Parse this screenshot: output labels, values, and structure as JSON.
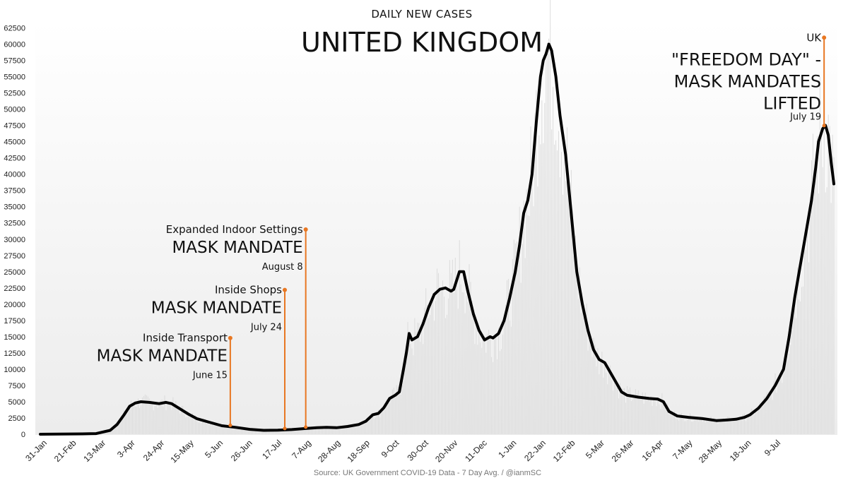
{
  "chart_data": {
    "type": "line",
    "title": "UNITED KINGDOM",
    "subtitle": "DAILY NEW CASES",
    "source": "Source: UK Government COVID-19 Data - 7 Day Avg. / @ianmSC",
    "ylim": [
      0,
      62500
    ],
    "yticks": [
      0,
      2500,
      5000,
      7500,
      10000,
      12500,
      15000,
      17500,
      20000,
      22500,
      25000,
      27500,
      30000,
      32500,
      35000,
      37500,
      40000,
      42500,
      45000,
      47500,
      50000,
      52500,
      55000,
      57500,
      60000,
      62500
    ],
    "x_tick_labels": [
      "31-Jan",
      "21-Feb",
      "13-Mar",
      "3-Apr",
      "24-Apr",
      "15-May",
      "5-Jun",
      "26-Jun",
      "17-Jul",
      "7-Aug",
      "28-Aug",
      "18-Sep",
      "9-Oct",
      "30-Oct",
      "20-Nov",
      "11-Dec",
      "1-Jan",
      "22-Jan",
      "12-Feb",
      "5-Mar",
      "26-Mar",
      "16-Apr",
      "7-May",
      "28-May",
      "18-Jun",
      "9-Jul"
    ],
    "xlim_days": [
      0,
      540
    ],
    "grid": false,
    "series": [
      {
        "values_day_y": [
          [
            0,
            0
          ],
          [
            30,
            50
          ],
          [
            40,
            100
          ],
          [
            50,
            600
          ],
          [
            55,
            1500
          ],
          [
            60,
            3000
          ],
          [
            64,
            4300
          ],
          [
            68,
            4800
          ],
          [
            72,
            5000
          ],
          [
            78,
            4900
          ],
          [
            85,
            4700
          ],
          [
            90,
            4900
          ],
          [
            94,
            4700
          ],
          [
            100,
            3900
          ],
          [
            106,
            3100
          ],
          [
            112,
            2400
          ],
          [
            120,
            1900
          ],
          [
            130,
            1300
          ],
          [
            140,
            1050
          ],
          [
            150,
            750
          ],
          [
            160,
            600
          ],
          [
            170,
            620
          ],
          [
            180,
            720
          ],
          [
            190,
            880
          ],
          [
            198,
            1000
          ],
          [
            205,
            1050
          ],
          [
            212,
            1000
          ],
          [
            220,
            1200
          ],
          [
            228,
            1500
          ],
          [
            233,
            2000
          ],
          [
            238,
            3000
          ],
          [
            242,
            3200
          ],
          [
            246,
            4100
          ],
          [
            250,
            5500
          ],
          [
            254,
            6000
          ],
          [
            257,
            6500
          ],
          [
            260,
            10000
          ],
          [
            262,
            12500
          ],
          [
            264,
            15500
          ],
          [
            266,
            14500
          ],
          [
            270,
            15000
          ],
          [
            274,
            17000
          ],
          [
            278,
            19500
          ],
          [
            282,
            21500
          ],
          [
            286,
            22300
          ],
          [
            290,
            22500
          ],
          [
            294,
            22000
          ],
          [
            296,
            22300
          ],
          [
            300,
            25000
          ],
          [
            303,
            25000
          ],
          [
            306,
            22000
          ],
          [
            310,
            18500
          ],
          [
            314,
            16000
          ],
          [
            318,
            14500
          ],
          [
            322,
            15000
          ],
          [
            324,
            14800
          ],
          [
            328,
            15500
          ],
          [
            332,
            17500
          ],
          [
            336,
            21000
          ],
          [
            340,
            25000
          ],
          [
            343,
            29000
          ],
          [
            346,
            34000
          ],
          [
            349,
            36000
          ],
          [
            352,
            40000
          ],
          [
            355,
            48000
          ],
          [
            358,
            55000
          ],
          [
            360,
            57500
          ],
          [
            362,
            58500
          ],
          [
            364,
            60000
          ],
          [
            366,
            59000
          ],
          [
            369,
            55000
          ],
          [
            372,
            49000
          ],
          [
            376,
            43000
          ],
          [
            380,
            34000
          ],
          [
            384,
            25000
          ],
          [
            388,
            20000
          ],
          [
            392,
            16000
          ],
          [
            396,
            13000
          ],
          [
            400,
            11500
          ],
          [
            404,
            11000
          ],
          [
            408,
            9500
          ],
          [
            412,
            8000
          ],
          [
            416,
            6500
          ],
          [
            420,
            6000
          ],
          [
            428,
            5700
          ],
          [
            436,
            5500
          ],
          [
            442,
            5400
          ],
          [
            446,
            5000
          ],
          [
            450,
            3500
          ],
          [
            456,
            2800
          ],
          [
            464,
            2600
          ],
          [
            474,
            2400
          ],
          [
            484,
            2100
          ],
          [
            492,
            2200
          ],
          [
            498,
            2300
          ],
          [
            504,
            2600
          ],
          [
            508,
            3000
          ],
          [
            514,
            4000
          ],
          [
            520,
            5500
          ],
          [
            526,
            7500
          ],
          [
            532,
            10000
          ],
          [
            536,
            15000
          ],
          [
            540,
            21000
          ],
          [
            544,
            26000
          ],
          [
            548,
            31000
          ],
          [
            552,
            36000
          ],
          [
            555,
            41000
          ],
          [
            557,
            45000
          ],
          [
            560,
            47000
          ],
          [
            562,
            47500
          ],
          [
            564,
            46000
          ],
          [
            566,
            42000
          ],
          [
            568,
            38500
          ]
        ]
      }
    ],
    "annotations": [
      {
        "sub": "Inside Transport",
        "main": "MASK MANDATE",
        "date": "June 15",
        "day": 136,
        "top": 14800
      },
      {
        "sub": "Inside Shops",
        "main": "MASK MANDATE",
        "date": "July 24",
        "day": 175,
        "top": 22200
      },
      {
        "sub": "Expanded Indoor Settings",
        "main": "MASK MANDATE",
        "date": "August 8",
        "day": 190,
        "top": 31500
      },
      {
        "sub": "UK",
        "main_lines": [
          "\"FREEDOM DAY\" -",
          "MASK MANDATES",
          "LIFTED"
        ],
        "date": "July 19",
        "day": 561,
        "top": 61000
      }
    ],
    "colors": {
      "line": "#000000",
      "annotation": "#e87722",
      "bars": "#d9d9d9"
    }
  }
}
